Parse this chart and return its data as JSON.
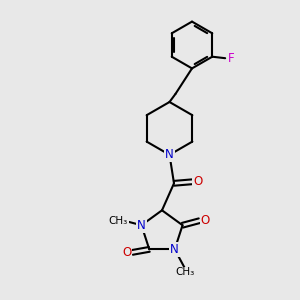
{
  "bg_color": "#e8e8e8",
  "bond_color": "#000000",
  "N_color": "#0000cc",
  "O_color": "#cc0000",
  "F_color": "#cc00cc",
  "line_width": 1.5,
  "font_size_atom": 8.5,
  "font_size_methyl": 7.5
}
